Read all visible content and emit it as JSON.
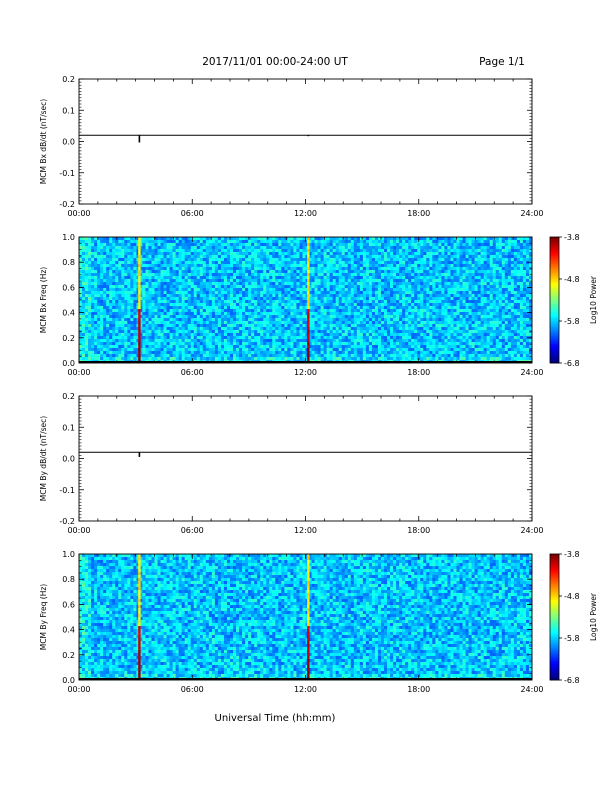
{
  "header": {
    "date_range": "2017/11/01  00:00-24:00 UT",
    "page": "Page 1/1"
  },
  "footer": {
    "xlabel": "Universal Time (hh:mm)"
  },
  "chart_data": [
    {
      "type": "line",
      "ylabel": "MCM Bx dB/dt (nT/sec)",
      "xlim": [
        0,
        24
      ],
      "ylim": [
        -0.2,
        0.2
      ],
      "x_ticks": [
        "00:00",
        "06:00",
        "12:00",
        "18:00",
        "24:00"
      ],
      "y_ticks": [
        "0.2",
        "0.1",
        "0.0",
        "-0.1",
        "-0.2"
      ],
      "baseline": 0.02,
      "spikes": [
        {
          "x": 3.2,
          "y": -0.003
        },
        {
          "x": 12.15,
          "y": 0.017
        }
      ]
    },
    {
      "type": "heatmap",
      "ylabel": "MCM Bx Freq (Hz)",
      "xlim": [
        0,
        24
      ],
      "ylim": [
        0,
        1
      ],
      "x_ticks": [
        "00:00",
        "06:00",
        "12:00",
        "18:00",
        "24:00"
      ],
      "y_ticks": [
        "1.0",
        "0.8",
        "0.6",
        "0.4",
        "0.2",
        "0.0"
      ],
      "colorbar": {
        "label": "Log10 Power",
        "ticks": [
          "-3.8",
          "-4.8",
          "-5.8",
          "-6.8"
        ],
        "range": [
          -6.8,
          -3.8
        ]
      },
      "features": [
        {
          "x": 3.2,
          "note": "broadband vertical event"
        },
        {
          "x": 12.15,
          "note": "broadband vertical event"
        }
      ]
    },
    {
      "type": "line",
      "ylabel": "MCM By dB/dt (nT/sec)",
      "xlim": [
        0,
        24
      ],
      "ylim": [
        -0.2,
        0.2
      ],
      "x_ticks": [
        "00:00",
        "06:00",
        "12:00",
        "18:00",
        "24:00"
      ],
      "y_ticks": [
        "0.2",
        "0.1",
        "0.0",
        "-0.1",
        "-0.2"
      ],
      "baseline": 0.02,
      "spikes": [
        {
          "x": 3.2,
          "y": 0.005
        }
      ]
    },
    {
      "type": "heatmap",
      "ylabel": "MCM By Freq (Hz)",
      "xlim": [
        0,
        24
      ],
      "ylim": [
        0,
        1
      ],
      "x_ticks": [
        "00:00",
        "06:00",
        "12:00",
        "18:00",
        "24:00"
      ],
      "y_ticks": [
        "1.0",
        "0.8",
        "0.6",
        "0.4",
        "0.2",
        "0.0"
      ],
      "colorbar": {
        "label": "Log10 Power",
        "ticks": [
          "-3.8",
          "-4.8",
          "-5.8",
          "-6.8"
        ],
        "range": [
          -6.8,
          -3.8
        ]
      },
      "features": [
        {
          "x": 3.2,
          "note": "broadband vertical event"
        },
        {
          "x": 12.15,
          "note": "broadband vertical event"
        }
      ]
    }
  ]
}
